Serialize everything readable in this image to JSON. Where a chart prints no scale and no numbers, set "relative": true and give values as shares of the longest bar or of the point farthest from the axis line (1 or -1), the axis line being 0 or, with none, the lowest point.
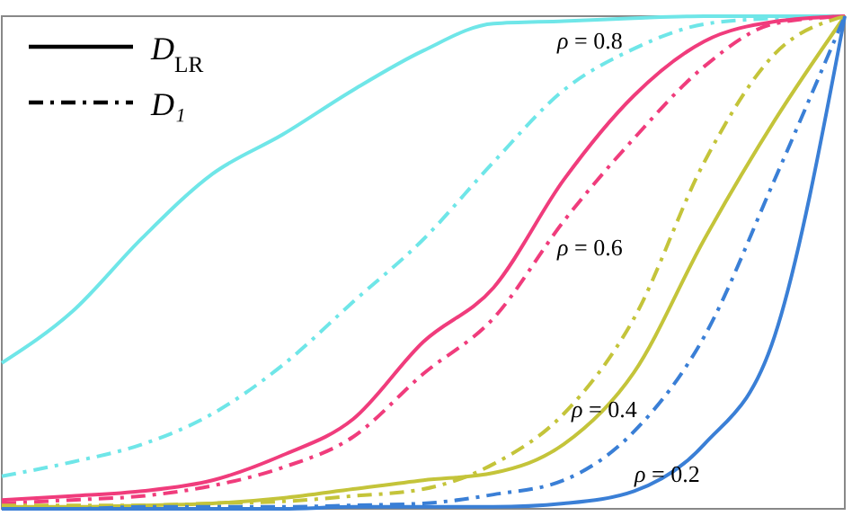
{
  "chart_data": {
    "type": "line",
    "relative": true,
    "categories": [
      null,
      null,
      null,
      null,
      null,
      null,
      null,
      null,
      null,
      null,
      null,
      null,
      null
    ],
    "series": [
      {
        "color": "#6fe6e8",
        "line_style": "solid",
        "values": [
          0.296,
          0.4,
          0.55,
          0.68,
          0.76,
          0.85,
          0.93,
          0.985,
          0.99,
          0.996,
          1,
          1,
          1
        ]
      },
      {
        "color": "#6fe6e8",
        "line_style": "dashed",
        "values": [
          0.066,
          0.095,
          0.131,
          0.193,
          0.292,
          0.42,
          0.547,
          0.704,
          0.85,
          0.934,
          0.984,
          0.996,
          1
        ]
      },
      {
        "color": "#f03c7c",
        "line_style": "solid",
        "values": [
          0.018,
          0.026,
          0.036,
          0.058,
          0.109,
          0.182,
          0.339,
          0.449,
          0.668,
          0.839,
          0.949,
          0.989,
          1
        ]
      },
      {
        "color": "#f03c7c",
        "line_style": "dashed",
        "values": [
          0.011,
          0.018,
          0.026,
          0.047,
          0.084,
          0.146,
          0.274,
          0.387,
          0.584,
          0.752,
          0.898,
          0.985,
          1
        ]
      },
      {
        "color": "#c4c43a",
        "line_style": "solid",
        "values": [
          0.004,
          0.004,
          0.007,
          0.011,
          0.022,
          0.04,
          0.058,
          0.073,
          0.131,
          0.277,
          0.547,
          0.788,
          1
        ]
      },
      {
        "color": "#c4c43a",
        "line_style": "dashed",
        "values": [
          0.007,
          0.007,
          0.007,
          0.011,
          0.015,
          0.026,
          0.04,
          0.091,
          0.193,
          0.387,
          0.704,
          0.923,
          1
        ]
      },
      {
        "color": "#3a7fd6",
        "line_style": "solid",
        "values": [
          0,
          0,
          0,
          0,
          0,
          0.004,
          0.004,
          0.004,
          0.011,
          0.036,
          0.131,
          0.35,
          1
        ]
      },
      {
        "color": "#3a7fd6",
        "line_style": "dashed",
        "values": [
          0,
          0,
          0.004,
          0.004,
          0.004,
          0.007,
          0.011,
          0.029,
          0.058,
          0.157,
          0.35,
          0.668,
          1
        ]
      }
    ],
    "annotations": [
      "D$_{LR}$",
      "D₁",
      "ρ = 0.8",
      "ρ = 0.6",
      "ρ = 0.4",
      "ρ = 0.2"
    ]
  }
}
